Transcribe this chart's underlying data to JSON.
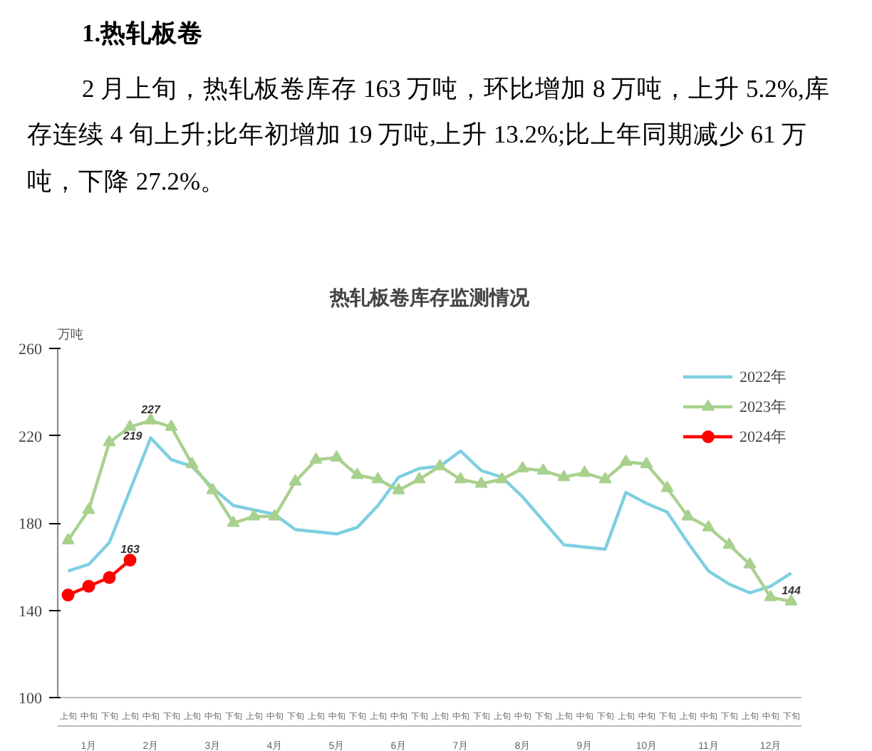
{
  "chart_data": {
    "type": "line",
    "title": "热轧板卷库存监测情况",
    "ylabel": "万吨",
    "annotations": [
      "1.热轧板卷",
      "2 月上旬，热轧板卷库存 163 万吨，环比增加 8 万吨，上升 5.2%,库存连续 4 旬上升;比年初增加 19 万吨,上升 13.2%;比上年同期减少 61 万吨，下降 27.2%。",
      "1月",
      "2月",
      "3月",
      "4月",
      "5月",
      "6月",
      "7月",
      "8月",
      "9月",
      "10月",
      "11月",
      "12月"
    ],
    "categories": [
      "上旬",
      "中旬",
      "下旬",
      "上旬",
      "中旬",
      "下旬",
      "上旬",
      "中旬",
      "下旬",
      "上旬",
      "中旬",
      "下旬",
      "上旬",
      "中旬",
      "下旬",
      "上旬",
      "中旬",
      "下旬",
      "上旬",
      "中旬",
      "下旬",
      "上旬",
      "中旬",
      "下旬",
      "上旬",
      "中旬",
      "下旬",
      "上旬",
      "中旬",
      "下旬",
      "上旬",
      "中旬",
      "下旬",
      "上旬",
      "中旬",
      "下旬"
    ],
    "series": [
      {
        "name": "2022年",
        "color": "#7ecfe0",
        "marker": "none",
        "values": [
          158,
          161,
          171,
          195,
          219,
          209,
          206,
          196,
          188,
          186,
          184,
          177,
          176,
          175,
          178,
          188,
          201,
          205,
          206,
          213,
          204,
          201,
          192,
          181,
          170,
          169,
          168,
          194,
          189,
          185,
          171,
          158,
          152,
          148,
          151,
          157
        ],
        "value_labels": [
          null,
          null,
          null,
          null,
          "219",
          null,
          null,
          null,
          null,
          null,
          null,
          null,
          null,
          null,
          null,
          null,
          null,
          null,
          null,
          null,
          null,
          null,
          null,
          null,
          null,
          null,
          null,
          null,
          null,
          null,
          null,
          null,
          null,
          null,
          null,
          null
        ]
      },
      {
        "name": "2023年",
        "color": "#a9d18e",
        "marker": "triangle",
        "values": [
          172,
          186,
          217,
          224,
          227,
          224,
          207,
          195,
          180,
          183,
          183,
          199,
          209,
          210,
          202,
          200,
          195,
          200,
          206,
          200,
          198,
          200,
          205,
          204,
          201,
          203,
          200,
          208,
          207,
          196,
          183,
          178,
          170,
          161,
          146,
          144
        ],
        "value_labels": [
          null,
          null,
          null,
          null,
          "227",
          null,
          null,
          null,
          null,
          null,
          null,
          null,
          null,
          null,
          null,
          null,
          null,
          null,
          null,
          null,
          null,
          null,
          null,
          null,
          null,
          null,
          null,
          null,
          null,
          null,
          null,
          null,
          null,
          null,
          null,
          "144"
        ]
      },
      {
        "name": "2024年",
        "color": "#ff0000",
        "marker": "circle",
        "values": [
          147,
          151,
          155,
          163,
          null,
          null,
          null,
          null,
          null,
          null,
          null,
          null,
          null,
          null,
          null,
          null,
          null,
          null,
          null,
          null,
          null,
          null,
          null,
          null,
          null,
          null,
          null,
          null,
          null,
          null,
          null,
          null,
          null,
          null,
          null,
          null
        ],
        "value_labels": [
          null,
          null,
          null,
          "163",
          null,
          null,
          null,
          null,
          null,
          null,
          null,
          null,
          null,
          null,
          null,
          null,
          null,
          null,
          null,
          null,
          null,
          null,
          null,
          null,
          null,
          null,
          null,
          null,
          null,
          null,
          null,
          null,
          null,
          null,
          null,
          null
        ]
      }
    ],
    "ylim": [
      100,
      260
    ],
    "yticks": [
      100,
      140,
      180,
      220,
      260
    ],
    "grid": false,
    "legend": "top right",
    "line_style": "solid"
  }
}
